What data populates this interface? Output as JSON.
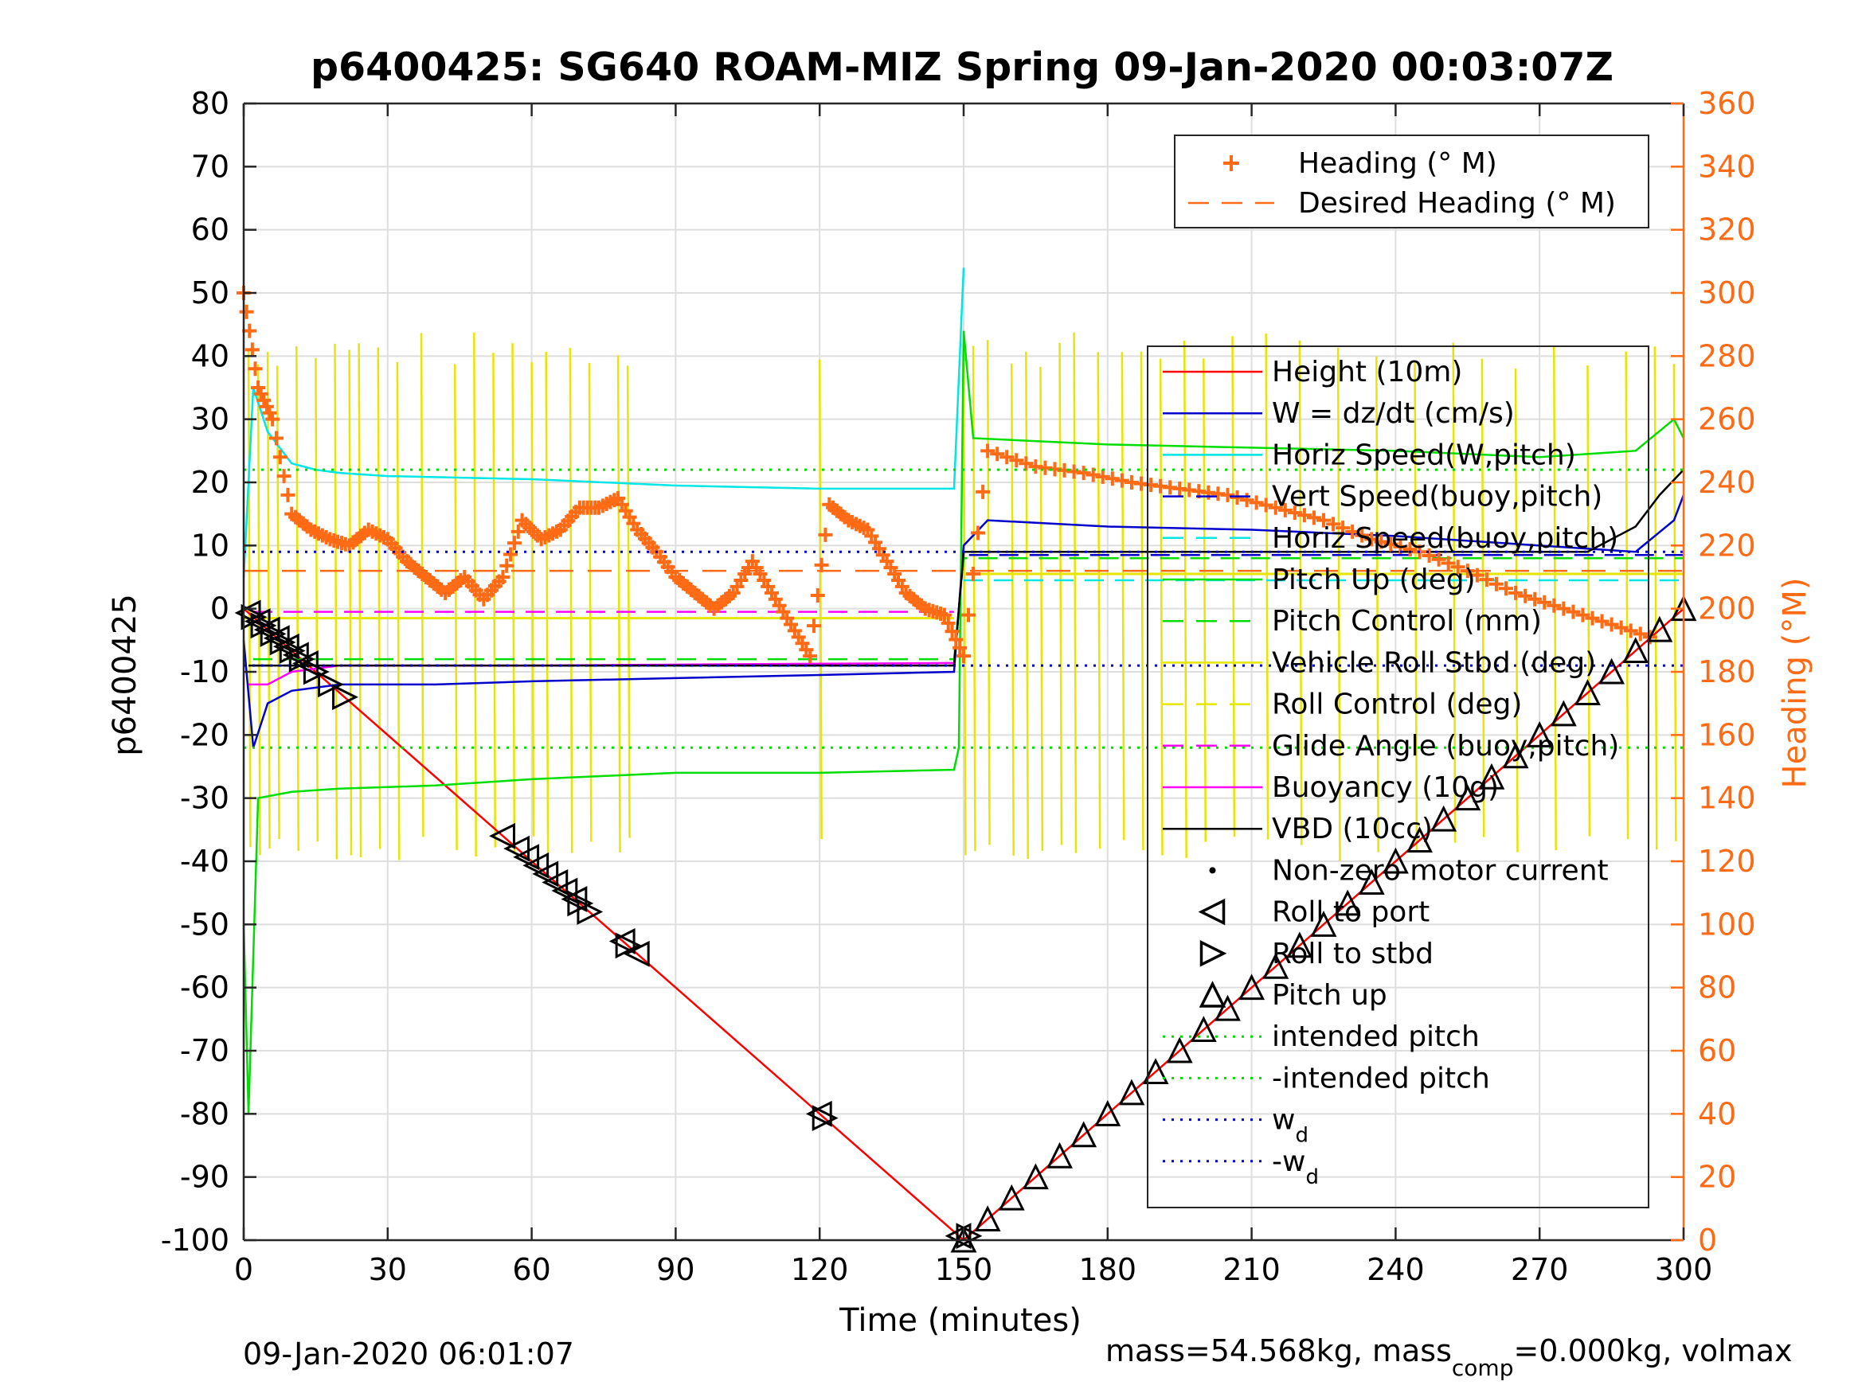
{
  "chart_data": {
    "type": "line",
    "title": "p6400425: SG640 ROAM-MIZ Spring 09-Jan-2020 00:03:07Z",
    "xlabel": "Time (minutes)",
    "ylabel": "p6400425",
    "ylabel_right": "Heading (°M)",
    "xlim": [
      0,
      300
    ],
    "ylim": [
      -100,
      80
    ],
    "ylim_right": [
      0,
      360
    ],
    "xticks": [
      "0",
      "30",
      "60",
      "90",
      "120",
      "150",
      "180",
      "210",
      "240",
      "270",
      "300"
    ],
    "yticks": [
      "80",
      "70",
      "60",
      "50",
      "40",
      "30",
      "20",
      "10",
      "0",
      "-10",
      "-20",
      "-30",
      "-40",
      "-50",
      "-60",
      "-70",
      "-80",
      "-90",
      "-100"
    ],
    "yticks_right": [
      "360",
      "340",
      "320",
      "300",
      "280",
      "260",
      "240",
      "220",
      "200",
      "180",
      "160",
      "140",
      "120",
      "100",
      "80",
      "60",
      "40",
      "20",
      "0"
    ],
    "grid": true,
    "footer_left": "09-Jan-2020 06:01:07",
    "footer_right": {
      "a": "mass=54.568kg, mass",
      "sub": "comp",
      "b": "=0.000kg, volmax"
    },
    "legend_heading": [
      {
        "label": "Heading (° M)",
        "color": "#ff6a14",
        "style": "plus"
      },
      {
        "label": "Desired Heading (° M)",
        "color": "#ff6a14",
        "style": "dashed"
      }
    ],
    "legend_heading_placement": "top-right",
    "legend_main": [
      {
        "label": "Height (10m)",
        "color": "#ff0000",
        "style": "line"
      },
      {
        "label": "W = dz/dt (cm/s)",
        "color": "#0000cc",
        "style": "line"
      },
      {
        "label": "Horiz Speed(W,pitch)",
        "color": "#00e5e5",
        "style": "line"
      },
      {
        "label": "Vert Speed(buoy,pitch)",
        "color": "#0000cc",
        "style": "dashed"
      },
      {
        "label": "Horiz Speed(buoy,pitch)",
        "color": "#00e5e5",
        "style": "dashed"
      },
      {
        "label": "Pitch Up (deg)",
        "color": "#00dd00",
        "style": "line"
      },
      {
        "label": "Pitch Control (mm)",
        "color": "#00dd00",
        "style": "dashed"
      },
      {
        "label": "Vehicle Roll Stbd (deg)",
        "color": "#e6e600",
        "style": "line"
      },
      {
        "label": "Roll Control (deg)",
        "color": "#e6e600",
        "style": "dashed"
      },
      {
        "label": "Glide Angle (buoy,pitch)",
        "color": "#ff00ff",
        "style": "dashed"
      },
      {
        "label": "Buoyancy (10g)",
        "color": "#ff00ff",
        "style": "line"
      },
      {
        "label": "VBD (10cc)",
        "color": "#000000",
        "style": "line"
      },
      {
        "label": "Non-zero motor current",
        "color": "#000000",
        "style": "dot"
      },
      {
        "label": "Roll to port",
        "color": "#000000",
        "style": "tri-left"
      },
      {
        "label": "Roll to stbd",
        "color": "#000000",
        "style": "tri-right"
      },
      {
        "label": "Pitch up",
        "color": "#000000",
        "style": "tri-up"
      },
      {
        "label": "intended pitch",
        "color": "#00dd00",
        "style": "dotted"
      },
      {
        "label": "-intended pitch",
        "color": "#00dd00",
        "style": "dotted"
      },
      {
        "label": "w",
        "sub": "d",
        "color": "#0000cc",
        "style": "dotted"
      },
      {
        "label": "-w",
        "sub": "d",
        "color": "#0000cc",
        "style": "dotted"
      }
    ],
    "legend_main_placement": "right",
    "series": [
      {
        "name": "Height (10m)",
        "color": "#ff0000",
        "x": [
          0,
          150,
          300
        ],
        "y": [
          0,
          -100,
          0
        ]
      },
      {
        "name": "W = dz/dt (cm/s)",
        "color": "#0000cc",
        "x": [
          0,
          2,
          5,
          10,
          20,
          40,
          60,
          90,
          120,
          148,
          150,
          155,
          180,
          210,
          240,
          270,
          290,
          298,
          300
        ],
        "y": [
          -5,
          -22,
          -15,
          -13,
          -12,
          -12,
          -11.5,
          -11,
          -10.5,
          -10,
          10,
          14,
          13,
          12.5,
          11.5,
          10,
          9,
          14,
          18
        ]
      },
      {
        "name": "Horiz Speed(W,pitch)",
        "color": "#00e5e5",
        "x": [
          0,
          2,
          5,
          10,
          15,
          20,
          30,
          60,
          90,
          120,
          148,
          150
        ],
        "y": [
          5,
          35,
          28,
          23,
          22,
          21.5,
          21,
          20.5,
          19.5,
          19,
          19,
          54
        ]
      },
      {
        "name": "Vert Speed(buoy,pitch)",
        "color": "#0000cc",
        "x": [
          2,
          148,
          150,
          300
        ],
        "y": [
          -9,
          -9,
          8.5,
          8.5
        ]
      },
      {
        "name": "Horiz Speed(buoy,pitch)",
        "color": "#00e5e5",
        "x": [
          150,
          300
        ],
        "y": [
          4.5,
          4.5
        ]
      },
      {
        "name": "Pitch Up (deg)",
        "color": "#00dd00",
        "x": [
          0,
          1,
          3,
          10,
          20,
          40,
          60,
          90,
          120,
          148,
          149,
          150,
          152,
          180,
          210,
          240,
          270,
          290,
          298,
          300
        ],
        "y": [
          -50,
          -80,
          -30,
          -29,
          -28.5,
          -28,
          -27,
          -26,
          -26,
          -25.5,
          -22,
          44,
          27,
          26,
          25.5,
          25,
          24,
          25,
          30,
          27
        ]
      },
      {
        "name": "Pitch Control (mm)",
        "color": "#00dd00",
        "x": [
          2,
          148,
          150,
          300
        ],
        "y": [
          -8,
          -8,
          8,
          8
        ]
      },
      {
        "name": "Glide Angle (buoy,pitch)",
        "color": "#ff00ff",
        "x": [
          2,
          148
        ],
        "y": [
          -0.5,
          -0.5
        ]
      },
      {
        "name": "Buoyancy (10g)",
        "color": "#ff00ff",
        "x": [
          1,
          5,
          10,
          20,
          60,
          100,
          148
        ],
        "y": [
          -12,
          -12,
          -10,
          -9,
          -9,
          -8.8,
          -8.6
        ]
      },
      {
        "name": "VBD (10cc)",
        "color": "#000000",
        "x": [
          1,
          148,
          150,
          280,
          290,
          295,
          300
        ],
        "y": [
          -9,
          -9,
          9,
          9,
          13,
          18,
          22
        ]
      },
      {
        "name": "Heading (° M)",
        "color": "#ff6a14",
        "axis": "right",
        "x": [
          0,
          3,
          6,
          10,
          14,
          18,
          22,
          26,
          30,
          34,
          38,
          42,
          46,
          50,
          54,
          58,
          62,
          66,
          70,
          74,
          78,
          82,
          86,
          90,
          94,
          98,
          102,
          106,
          110,
          114,
          118,
          122,
          126,
          130,
          134,
          138,
          142,
          146,
          150,
          155,
          165,
          175,
          185,
          195,
          205,
          215,
          225,
          235,
          245,
          255,
          265,
          275,
          285,
          295
        ],
        "y": [
          300,
          270,
          260,
          230,
          225,
          222,
          220,
          225,
          222,
          215,
          210,
          205,
          210,
          203,
          210,
          228,
          222,
          225,
          232,
          232,
          235,
          225,
          218,
          210,
          205,
          200,
          205,
          215,
          205,
          195,
          185,
          233,
          228,
          225,
          215,
          205,
          200,
          198,
          185,
          250,
          245,
          243,
          240,
          238,
          236,
          232,
          228,
          222,
          218,
          212,
          205,
          200,
          195,
          190
        ]
      },
      {
        "name": "Desired Heading (° M)",
        "color": "#ff6a14",
        "axis": "right",
        "x": [
          0,
          300
        ],
        "y": [
          212,
          212
        ]
      },
      {
        "name": "intended pitch",
        "color": "#00dd00",
        "x": [
          0,
          300
        ],
        "y": [
          22,
          22
        ]
      },
      {
        "name": "-intended pitch",
        "color": "#00dd00",
        "x": [
          0,
          300
        ],
        "y": [
          -22,
          -22
        ]
      },
      {
        "name": "w_d",
        "color": "#0000cc",
        "x": [
          0,
          300
        ],
        "y": [
          9,
          9
        ]
      },
      {
        "name": "-w_d",
        "color": "#0000cc",
        "x": [
          0,
          300
        ],
        "y": [
          -9,
          -9
        ]
      }
    ],
    "roll_to_port_x": [
      1,
      3,
      5,
      7,
      9,
      11,
      13,
      54,
      57,
      59,
      61,
      63,
      65,
      67,
      69,
      79,
      82,
      120,
      149
    ],
    "roll_to_stbd_x": [
      2,
      4,
      6,
      8,
      10,
      12,
      15,
      18,
      21,
      70,
      72,
      80,
      121,
      151
    ],
    "pitch_up_x": [
      150,
      155,
      160,
      165,
      170,
      175,
      180,
      185,
      190,
      195,
      200,
      205,
      210,
      215,
      220,
      225,
      230,
      235,
      240,
      245,
      250,
      255,
      260,
      265,
      270,
      275,
      280,
      285,
      290,
      295,
      300
    ]
  }
}
